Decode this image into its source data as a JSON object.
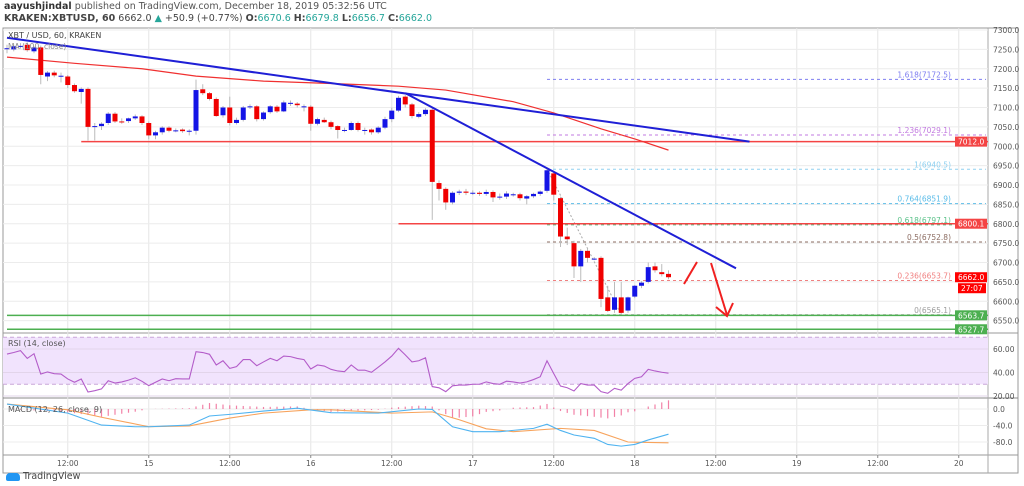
{
  "header": {
    "author": "aayushjindal",
    "published": "published on TradingView.com, December 18, 2019 05:32:56 UTC",
    "symbol": "KRAKEN:XBTUSD, 60",
    "last": "6662.0",
    "change": "+50.9 (+0.77%)",
    "o_label": "O:",
    "o": "6670.6",
    "h_label": "H:",
    "h": "6679.8",
    "l_label": "L:",
    "l": "6656.7",
    "c_label": "C:",
    "c": "6662.0"
  },
  "footer": {
    "brand": "TradingView"
  },
  "colors": {
    "up": "#1414e6",
    "down": "#f00000",
    "trendline": "#1f1fd6",
    "sma": "#f03030",
    "level": "#f44444",
    "support": "#4caf50",
    "rsi": "#b35cc9",
    "rsi_band": "#f1e3fd",
    "macd": "#4fb3f0",
    "signal": "#f7a35c",
    "histogram": "#f06292"
  },
  "chart_data": {
    "type": "candlestick",
    "title": "XBT / USD, 60, KRAKEN",
    "overlay_label": "MA (100, close)",
    "first_bar": "14 03:00",
    "interval_minutes": 60,
    "ohlc": [
      [
        7252,
        7262,
        7240,
        7253
      ],
      [
        7250,
        7262,
        7245,
        7258
      ],
      [
        7258,
        7266,
        7252,
        7259
      ],
      [
        7262,
        7268,
        7244,
        7248
      ],
      [
        7245,
        7258,
        7240,
        7255
      ],
      [
        7255,
        7260,
        7160,
        7184
      ],
      [
        7180,
        7194,
        7168,
        7190
      ],
      [
        7190,
        7195,
        7178,
        7183
      ],
      [
        7182,
        7190,
        7165,
        7182
      ],
      [
        7180,
        7184,
        7150,
        7158
      ],
      [
        7158,
        7162,
        7138,
        7142
      ],
      [
        7140,
        7152,
        7110,
        7148
      ],
      [
        7148,
        7152,
        7015,
        7050
      ],
      [
        7050,
        7060,
        7015,
        7052
      ],
      [
        7052,
        7062,
        7042,
        7058
      ],
      [
        7060,
        7088,
        7055,
        7084
      ],
      [
        7084,
        7088,
        7060,
        7064
      ],
      [
        7064,
        7072,
        7058,
        7062
      ],
      [
        7065,
        7074,
        7060,
        7072
      ],
      [
        7072,
        7082,
        7068,
        7077
      ],
      [
        7077,
        7080,
        7055,
        7060
      ],
      [
        7060,
        7064,
        7018,
        7028
      ],
      [
        7028,
        7040,
        7018,
        7036
      ],
      [
        7036,
        7052,
        7030,
        7048
      ],
      [
        7048,
        7052,
        7036,
        7040
      ],
      [
        7041,
        7046,
        7036,
        7041
      ],
      [
        7043,
        7046,
        7035,
        7039
      ],
      [
        7040,
        7044,
        7028,
        7040
      ],
      [
        7040,
        7172,
        7030,
        7145
      ],
      [
        7147,
        7160,
        7132,
        7137
      ],
      [
        7137,
        7140,
        7118,
        7122
      ],
      [
        7122,
        7126,
        7076,
        7078
      ],
      [
        7080,
        7104,
        7074,
        7100
      ],
      [
        7100,
        7128,
        7054,
        7060
      ],
      [
        7060,
        7074,
        7056,
        7068
      ],
      [
        7068,
        7104,
        7064,
        7100
      ],
      [
        7102,
        7108,
        7096,
        7103
      ],
      [
        7103,
        7106,
        7064,
        7070
      ],
      [
        7070,
        7090,
        7066,
        7087
      ],
      [
        7088,
        7106,
        7084,
        7103
      ],
      [
        7102,
        7106,
        7086,
        7090
      ],
      [
        7090,
        7118,
        7088,
        7113
      ],
      [
        7112,
        7118,
        7104,
        7112
      ],
      [
        7110,
        7114,
        7100,
        7106
      ],
      [
        7103,
        7108,
        7090,
        7103
      ],
      [
        7102,
        7106,
        7040,
        7058
      ],
      [
        7058,
        7074,
        7054,
        7070
      ],
      [
        7068,
        7074,
        7060,
        7062
      ],
      [
        7062,
        7066,
        7044,
        7050
      ],
      [
        7052,
        7054,
        7020,
        7042
      ],
      [
        7042,
        7048,
        7036,
        7042
      ],
      [
        7042,
        7064,
        7040,
        7060
      ],
      [
        7060,
        7064,
        7038,
        7042
      ],
      [
        7042,
        7048,
        7030,
        7042
      ],
      [
        7043,
        7046,
        7030,
        7036
      ],
      [
        7036,
        7052,
        7032,
        7048
      ],
      [
        7048,
        7076,
        7044,
        7070
      ],
      [
        7070,
        7100,
        7062,
        7092
      ],
      [
        7092,
        7130,
        7088,
        7125
      ],
      [
        7128,
        7132,
        7100,
        7108
      ],
      [
        7108,
        7112,
        7072,
        7078
      ],
      [
        7076,
        7088,
        7072,
        7083
      ],
      [
        7083,
        7098,
        7078,
        7094
      ],
      [
        7094,
        7098,
        6810,
        6908
      ],
      [
        6905,
        6912,
        6860,
        6890
      ],
      [
        6890,
        6894,
        6836,
        6855
      ],
      [
        6855,
        6884,
        6850,
        6880
      ],
      [
        6880,
        6888,
        6874,
        6883
      ],
      [
        6883,
        6890,
        6874,
        6880
      ],
      [
        6880,
        6886,
        6874,
        6880
      ],
      [
        6880,
        6884,
        6872,
        6877
      ],
      [
        6877,
        6888,
        6872,
        6882
      ],
      [
        6882,
        6886,
        6856,
        6868
      ],
      [
        6870,
        6878,
        6862,
        6870
      ],
      [
        6870,
        6884,
        6864,
        6878
      ],
      [
        6876,
        6880,
        6870,
        6876
      ],
      [
        6876,
        6880,
        6860,
        6866
      ],
      [
        6865,
        6874,
        6850,
        6871
      ],
      [
        6871,
        6880,
        6866,
        6877
      ],
      [
        6877,
        6886,
        6872,
        6883
      ],
      [
        6885,
        6942,
        6880,
        6938
      ],
      [
        6930,
        6934,
        6860,
        6875
      ],
      [
        6866,
        6870,
        6740,
        6767
      ],
      [
        6767,
        6790,
        6745,
        6760
      ],
      [
        6750,
        6756,
        6660,
        6690
      ],
      [
        6690,
        6735,
        6650,
        6730
      ],
      [
        6730,
        6736,
        6700,
        6712
      ],
      [
        6710,
        6714,
        6706,
        6710
      ],
      [
        6712,
        6716,
        6585,
        6606
      ],
      [
        6610,
        6640,
        6572,
        6575
      ],
      [
        6578,
        6650,
        6570,
        6610
      ],
      [
        6610,
        6650,
        6565,
        6570
      ],
      [
        6576,
        6612,
        6570,
        6610
      ],
      [
        6612,
        6642,
        6608,
        6640
      ],
      [
        6640,
        6652,
        6634,
        6648
      ],
      [
        6650,
        6700,
        6646,
        6688
      ],
      [
        6690,
        6700,
        6674,
        6680
      ],
      [
        6675,
        6696,
        6664,
        6670
      ],
      [
        6670.6,
        6679.8,
        6656.7,
        6662.0
      ]
    ],
    "sma": [
      [
        "14 03:00",
        7230
      ],
      [
        "14 13:00",
        7214
      ],
      [
        "14 23:00",
        7200
      ],
      [
        "15 07:00",
        7181
      ],
      [
        "15 17:00",
        7168
      ],
      [
        "16 03:00",
        7162
      ],
      [
        "16 13:00",
        7155
      ],
      [
        "16 20:00",
        7145
      ],
      [
        "17 06:00",
        7115
      ],
      [
        "17 12:00",
        7086
      ],
      [
        "17 19:00",
        7045
      ],
      [
        "18 00:00",
        7019
      ],
      [
        "18 05:00",
        6990
      ]
    ],
    "trendlines": [
      [
        [
          "14 03:00",
          7280
        ],
        [
          "18 17:00",
          7012
        ]
      ],
      [
        [
          "16 14:00",
          7137
        ],
        [
          "18 15:00",
          6685
        ]
      ]
    ],
    "levels": [
      {
        "price": 7012.0,
        "from": "14 14:00",
        "label": "7012.0",
        "kind": "resistance"
      },
      {
        "price": 6800.1,
        "from": "16 13:00",
        "label": "6800.1",
        "kind": "resistance"
      },
      {
        "price": 6563.7,
        "from": "14 03:00",
        "label": "6563.7",
        "kind": "support"
      },
      {
        "price": 6527.7,
        "from": "14 03:00",
        "label": "6527.7",
        "kind": "support"
      }
    ],
    "fib": {
      "from": "17 11:00",
      "lines": [
        {
          "label": "1.618(7172.5)",
          "price": 7172.5,
          "color": "#7e7ef0"
        },
        {
          "label": "1.236(7029.1)",
          "price": 7029.1,
          "color": "#c27ae0"
        },
        {
          "label": "1(6940.5)",
          "price": 6940.5,
          "color": "#8fd0f0"
        },
        {
          "label": "0.764(6851.9)",
          "price": 6851.9,
          "color": "#5bbce8"
        },
        {
          "label": "0.618(6797.1)",
          "price": 6797.1,
          "color": "#5cc28a"
        },
        {
          "label": "0.5(6752.8)",
          "price": 6752.8,
          "color": "#8d6e63"
        },
        {
          "label": "0.236(6653.7)",
          "price": 6653.7,
          "color": "#f08080"
        },
        {
          "label": "0(6565.1)",
          "price": 6565.1,
          "color": "#9e9e9e"
        }
      ]
    },
    "last_price": {
      "label": "6662.0",
      "countdown": "27:07"
    },
    "y_ticks": [
      "7300.0",
      "7250.0",
      "7200.0",
      "7150.0",
      "7100.0",
      "7050.0",
      "7000.0",
      "6950.0",
      "6900.0",
      "6850.0",
      "6800.0",
      "6750.0",
      "6700.0",
      "6650.0",
      "6600.0",
      "6550.0"
    ],
    "x_ticks": [
      [
        "14 12:00",
        "12:00"
      ],
      [
        "15 00:00",
        "15"
      ],
      [
        "15 12:00",
        "12:00"
      ],
      [
        "16 00:00",
        "16"
      ],
      [
        "16 12:00",
        "12:00"
      ],
      [
        "17 00:00",
        "17"
      ],
      [
        "17 12:00",
        "12:00"
      ],
      [
        "18 00:00",
        "18"
      ],
      [
        "18 12:00",
        "12:00"
      ],
      [
        "19 00:00",
        "19"
      ],
      [
        "19 12:00",
        "12:00"
      ],
      [
        "20 00:00",
        "20"
      ]
    ],
    "rsi": {
      "label": "RSI (14, close)",
      "band": [
        30,
        70
      ],
      "ticks": [
        "60.00",
        "40.00",
        "20.00"
      ],
      "values": [
        55.7,
        57,
        58.6,
        52,
        56,
        38.7,
        40.5,
        39,
        38.7,
        34.5,
        31.7,
        34.5,
        23.4,
        24.5,
        26,
        33,
        31,
        32,
        33.5,
        35.5,
        32.5,
        28.8,
        31.7,
        34.5,
        33,
        34.7,
        34.5,
        34.5,
        57.7,
        57,
        55.5,
        46.4,
        50,
        43.5,
        45,
        51,
        51,
        45.8,
        49,
        52,
        50,
        54,
        53.5,
        52,
        51,
        43,
        46.4,
        45.5,
        42.7,
        41.3,
        40.7,
        46.4,
        42,
        42,
        40.2,
        44.5,
        49,
        54,
        60.6,
        55,
        49,
        50,
        52.5,
        28,
        27,
        23.7,
        28.7,
        29.3,
        29.3,
        30,
        30,
        32,
        30.6,
        30,
        32.6,
        32,
        31,
        32,
        34,
        36.4,
        50,
        39,
        28.5,
        27,
        24.3,
        30.6,
        29.3,
        29.3,
        23.7,
        22.3,
        26.5,
        25,
        30.6,
        35,
        36.4,
        42.7,
        41.3,
        40.2,
        39.4
      ]
    },
    "macd": {
      "label": "MACD (12, 26, close, 9)",
      "ticks": [
        "0.0",
        "-40.0",
        "-80.0"
      ],
      "macd": [
        [
          "14 03:00",
          12
        ],
        [
          "14 12:00",
          -10
        ],
        [
          "14 17:00",
          -39
        ],
        [
          "14 22:00",
          -43
        ],
        [
          "15 00:00",
          -43
        ],
        [
          "15 06:00",
          -39
        ],
        [
          "15 09:00",
          -17
        ],
        [
          "15 12:00",
          -13
        ],
        [
          "15 17:00",
          -5
        ],
        [
          "15 22:00",
          2
        ],
        [
          "16 03:00",
          -9
        ],
        [
          "16 10:00",
          -10
        ],
        [
          "16 16:00",
          0
        ],
        [
          "16 18:00",
          -1
        ],
        [
          "16 21:00",
          -43
        ],
        [
          "17 00:00",
          -55
        ],
        [
          "17 04:00",
          -55
        ],
        [
          "17 09:00",
          -47
        ],
        [
          "17 11:00",
          -37
        ],
        [
          "17 13:00",
          -52
        ],
        [
          "17 15:00",
          -63
        ],
        [
          "17 18:00",
          -71
        ],
        [
          "17 20:00",
          -86
        ],
        [
          "17 22:00",
          -90
        ],
        [
          "18 00:00",
          -86
        ],
        [
          "18 02:00",
          -75
        ],
        [
          "18 05:00",
          -61
        ]
      ],
      "signal": [
        [
          "14 03:00",
          12
        ],
        [
          "14 12:00",
          -2
        ],
        [
          "14 17:00",
          -20
        ],
        [
          "15 00:00",
          -43
        ],
        [
          "15 06:00",
          -41
        ],
        [
          "15 12:00",
          -22
        ],
        [
          "15 17:00",
          -10
        ],
        [
          "16 00:00",
          -2
        ],
        [
          "16 03:00",
          -2
        ],
        [
          "16 12:00",
          -10
        ],
        [
          "16 18:00",
          -7
        ],
        [
          "16 22:00",
          -26
        ],
        [
          "17 02:00",
          -48
        ],
        [
          "17 06:00",
          -55
        ],
        [
          "17 13:00",
          -47
        ],
        [
          "17 18:00",
          -52
        ],
        [
          "17 23:00",
          -80
        ],
        [
          "18 05:00",
          -82
        ]
      ]
    }
  }
}
